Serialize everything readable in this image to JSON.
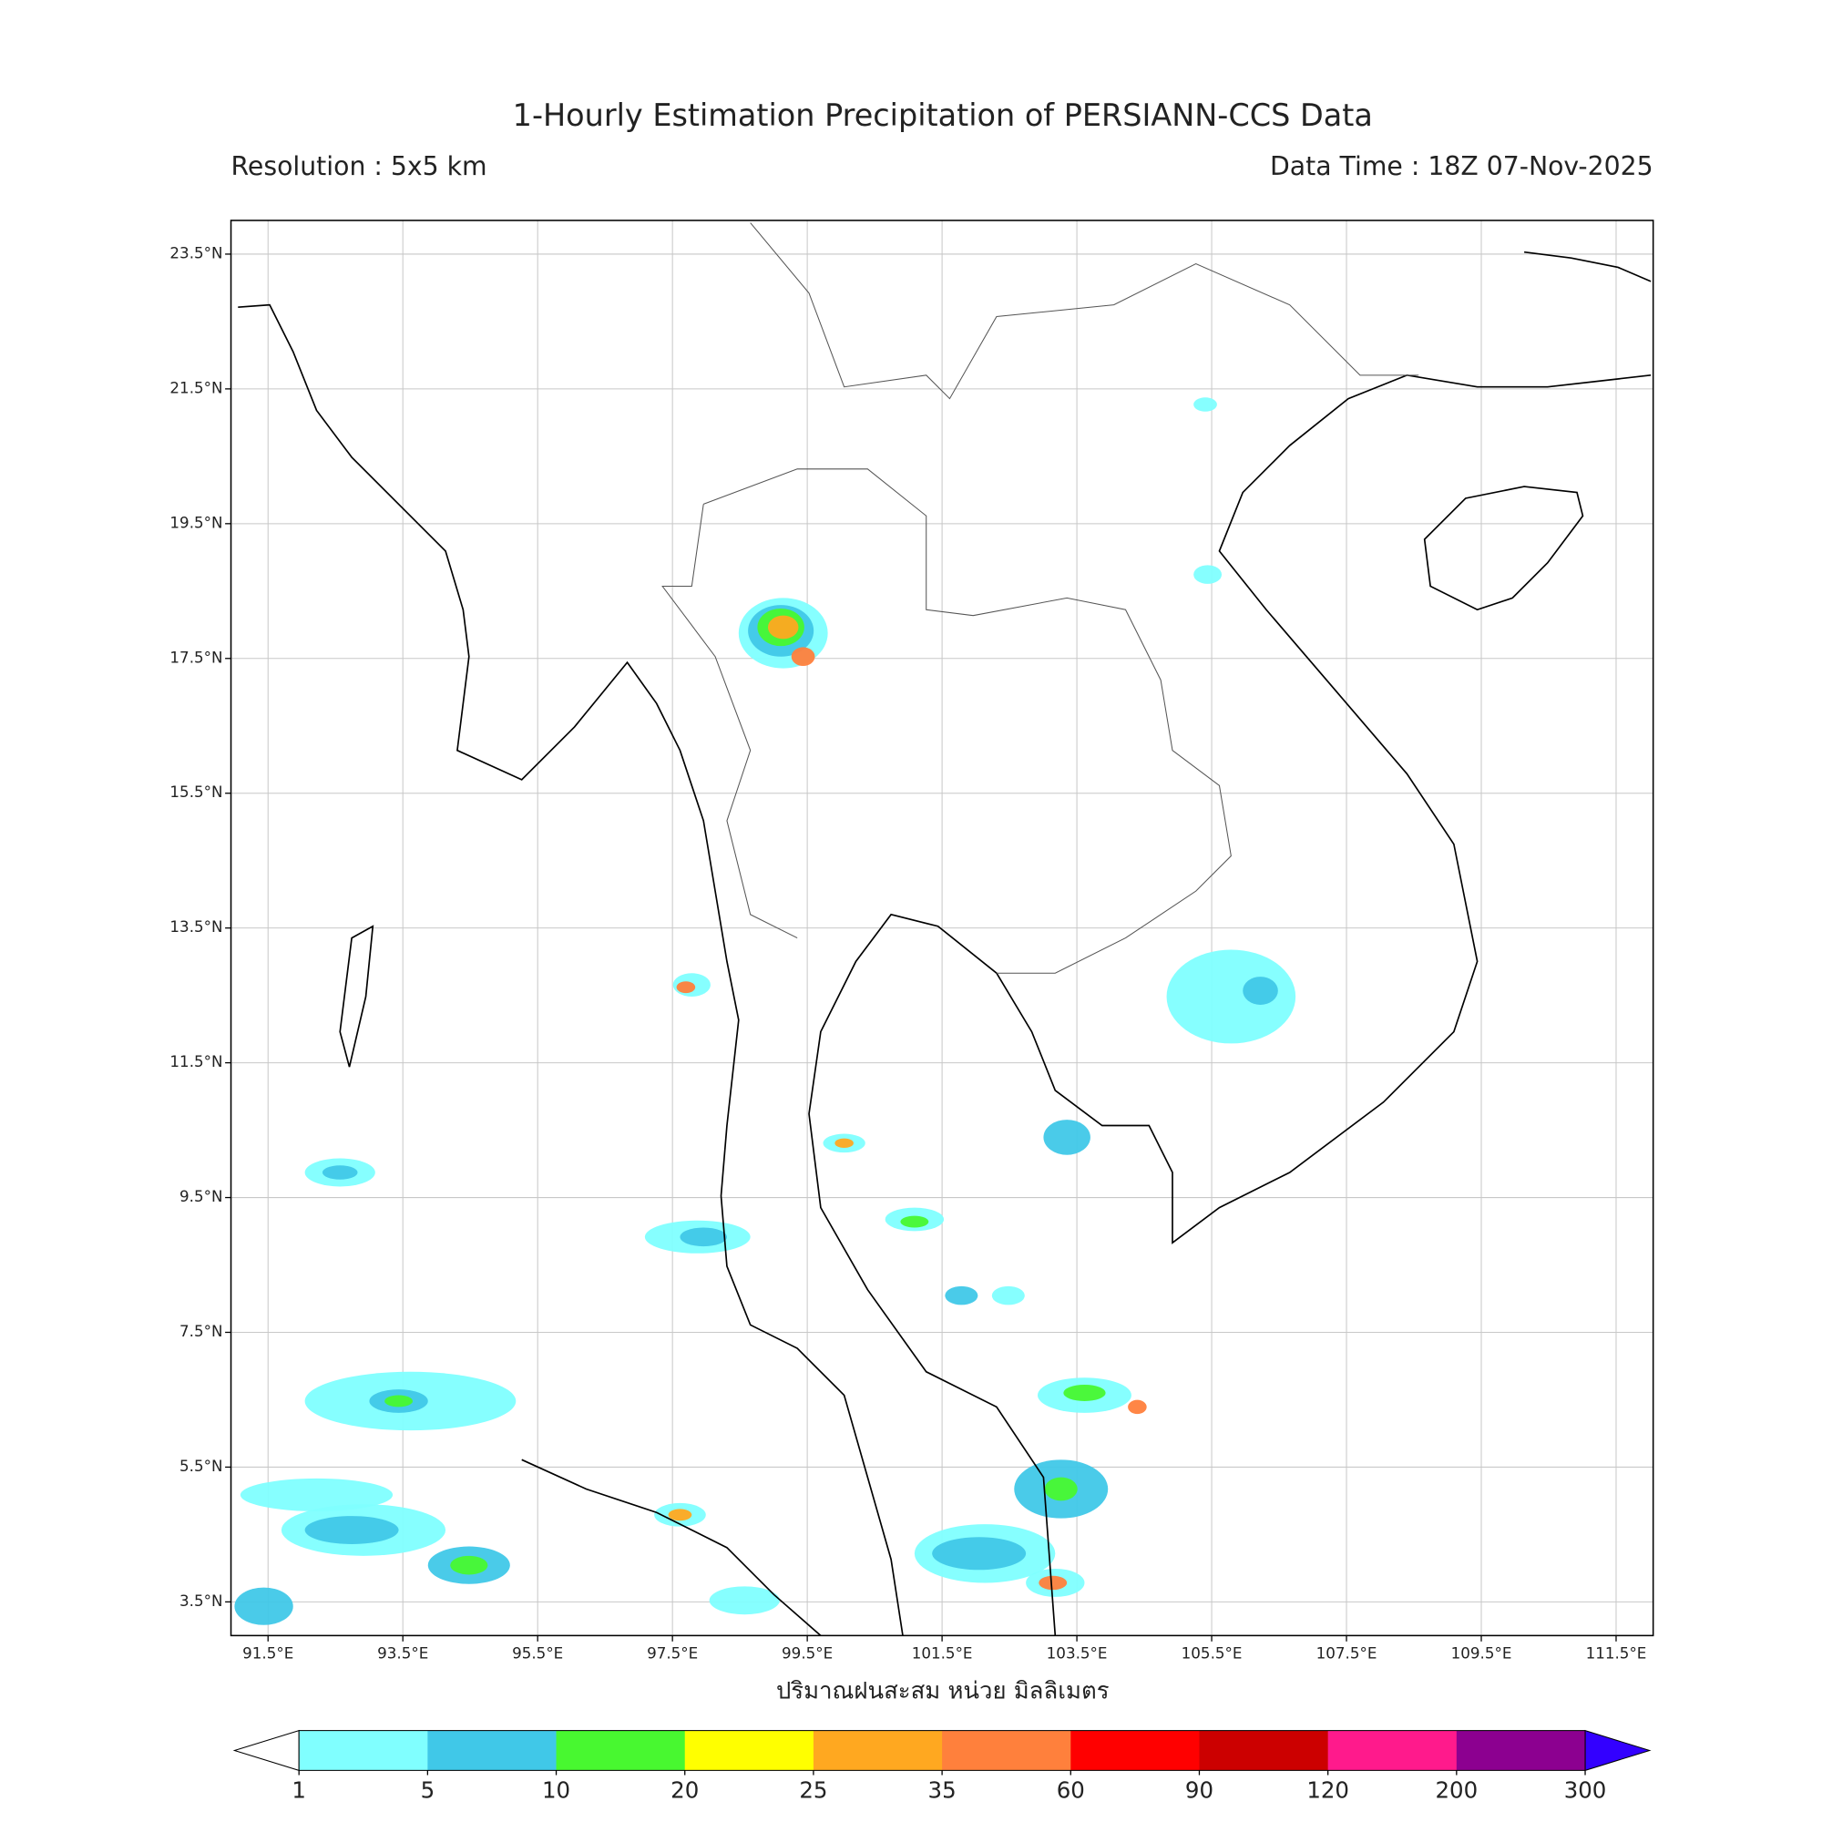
{
  "title": "1-Hourly Estimation Precipitation of PERSIANN-CCS Data",
  "resolution": "Resolution : 5x5 km",
  "data_time": "Data Time : 18Z 07-Nov-2025",
  "map": {
    "xlim": [
      90.95,
      112.05
    ],
    "ylim": [
      3.0,
      24.0
    ],
    "grid": true,
    "lat_ticks": [
      {
        "value": 3.5,
        "label": "3.5°N"
      },
      {
        "value": 5.5,
        "label": "5.5°N"
      },
      {
        "value": 7.5,
        "label": "7.5°N"
      },
      {
        "value": 9.5,
        "label": "9.5°N"
      },
      {
        "value": 11.5,
        "label": "11.5°N"
      },
      {
        "value": 13.5,
        "label": "13.5°N"
      },
      {
        "value": 15.5,
        "label": "15.5°N"
      },
      {
        "value": 17.5,
        "label": "17.5°N"
      },
      {
        "value": 19.5,
        "label": "19.5°N"
      },
      {
        "value": 21.5,
        "label": "21.5°N"
      },
      {
        "value": 23.5,
        "label": "23.5°N"
      }
    ],
    "lon_ticks": [
      {
        "value": 91.5,
        "label": "91.5°E"
      },
      {
        "value": 93.5,
        "label": "93.5°E"
      },
      {
        "value": 95.5,
        "label": "95.5°E"
      },
      {
        "value": 97.5,
        "label": "97.5°E"
      },
      {
        "value": 99.5,
        "label": "99.5°E"
      },
      {
        "value": 101.5,
        "label": "101.5°E"
      },
      {
        "value": 103.5,
        "label": "103.5°E"
      },
      {
        "value": 105.5,
        "label": "105.5°E"
      },
      {
        "value": 107.5,
        "label": "107.5°E"
      },
      {
        "value": 109.5,
        "label": "109.5°E"
      },
      {
        "value": 111.5,
        "label": "111.5°E"
      }
    ]
  },
  "colorbar": {
    "label": "ปริมาณฝนสะสม หน่วย มิลลิเมตร",
    "levels": [
      1,
      5,
      10,
      20,
      25,
      35,
      60,
      90,
      120,
      200,
      300
    ],
    "colors": [
      "#80ffff",
      "#40c8e8",
      "#48f830",
      "#ffff00",
      "#ffa820",
      "#ff803c",
      "#ff0000",
      "#cc0000",
      "#ff1a8c",
      "#8c0090"
    ],
    "under_color": "#ffffff",
    "over_color": "#3300ff"
  }
}
